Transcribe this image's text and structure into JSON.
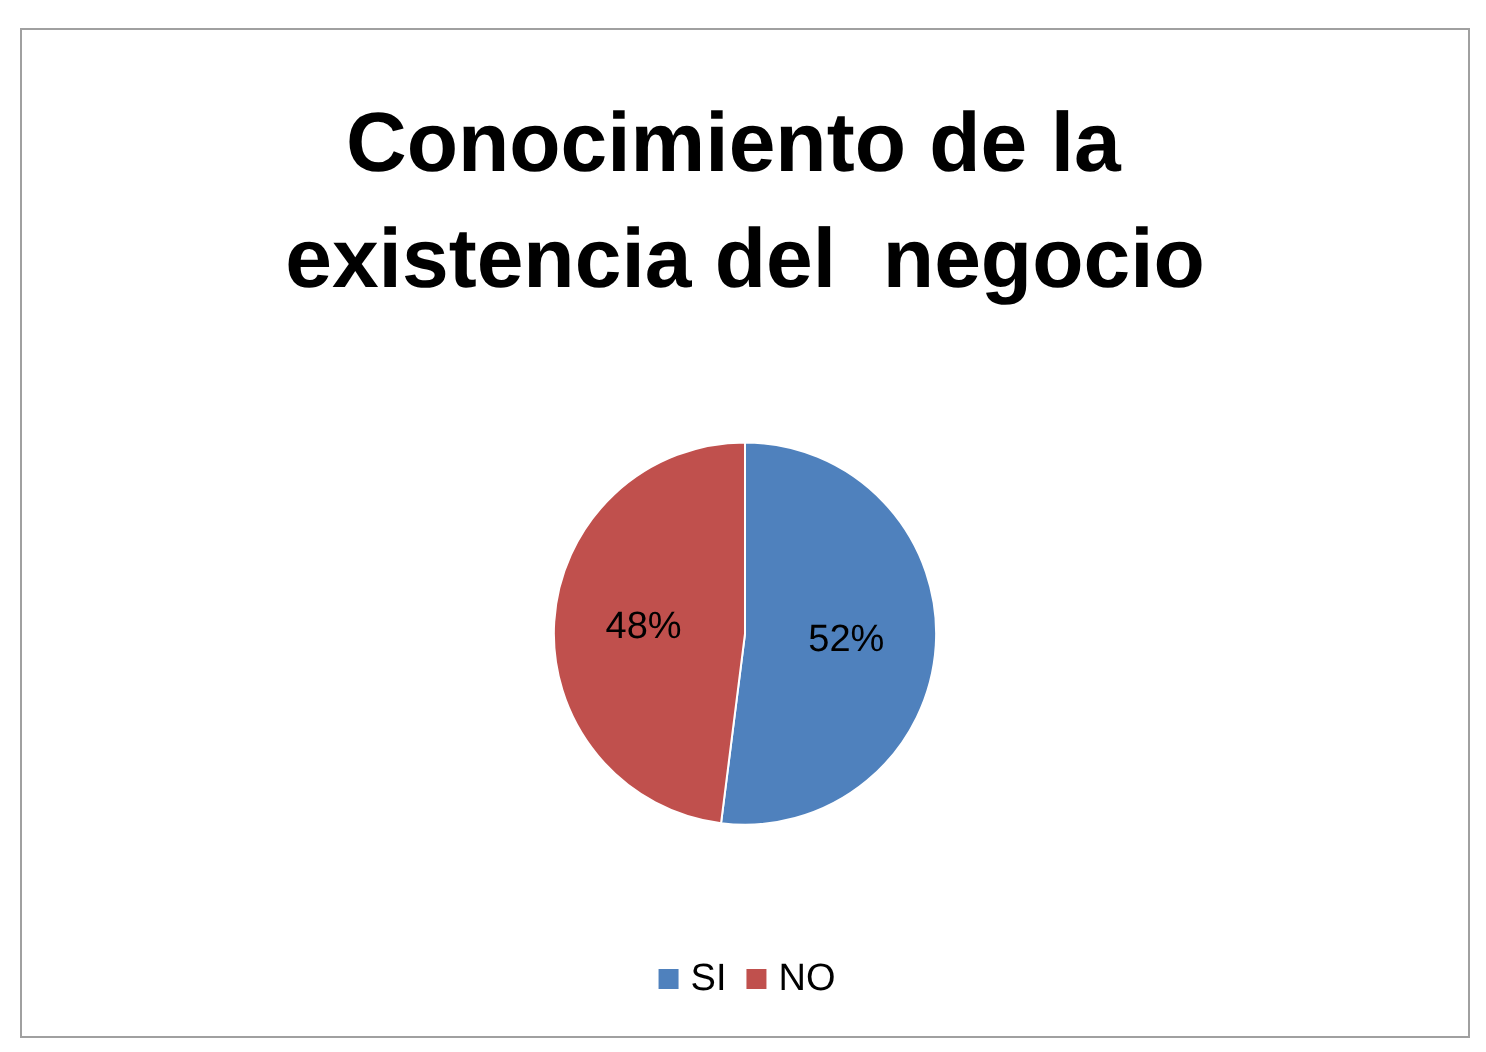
{
  "chart_data": {
    "type": "pie",
    "title": "Conocimiento de la existencia del  negocio",
    "categories": [
      "SI",
      "NO"
    ],
    "values": [
      52,
      48
    ],
    "colors": [
      "#4f81bd",
      "#c0504d"
    ],
    "value_labels": [
      "52%",
      "48%"
    ],
    "legend": "bottom"
  }
}
